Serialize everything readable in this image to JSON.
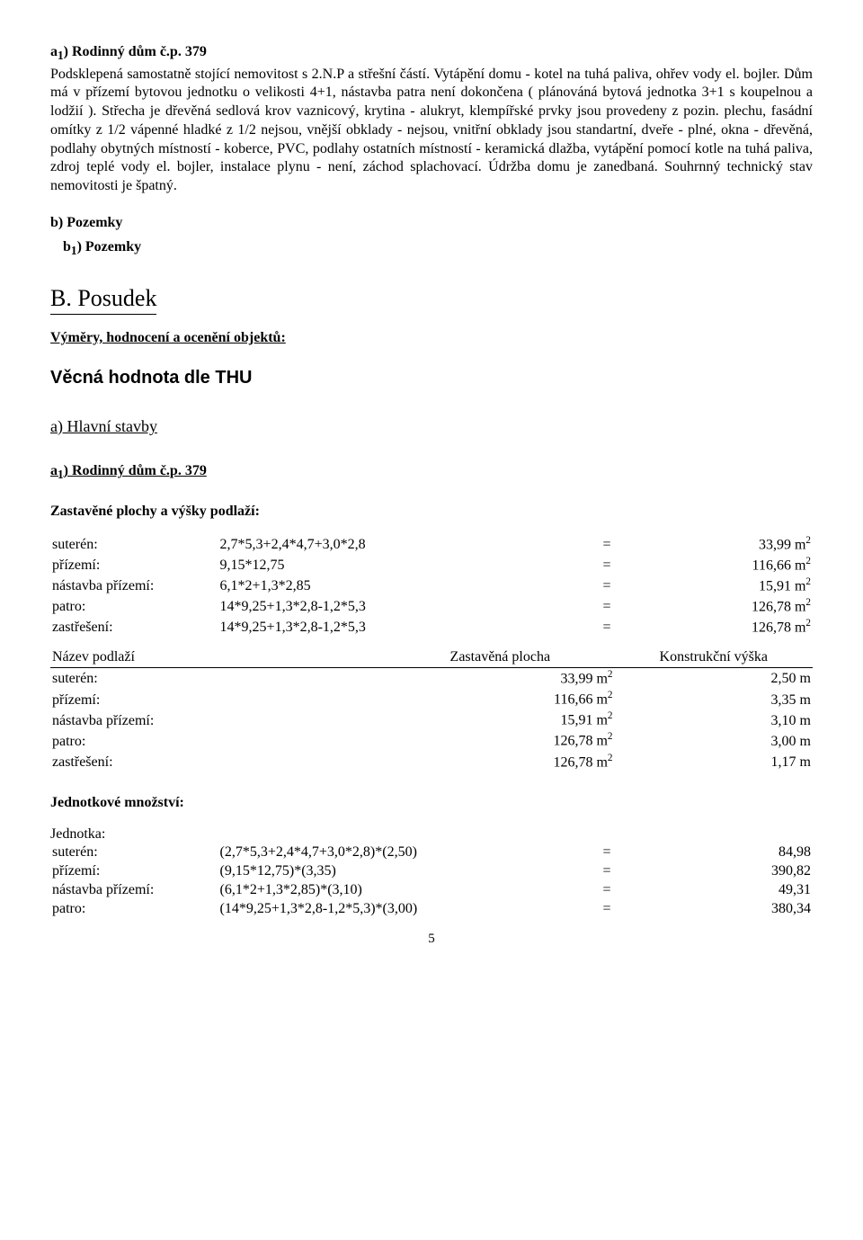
{
  "section_a1": {
    "heading": "a₁) Rodinný dům č.p. 379",
    "paragraph": "Podsklepená samostatně stojící nemovitost s 2.N.P a střešní částí.  Vytápění domu - kotel na tuhá paliva, ohřev vody el. bojler. Dům má v přízemí bytovou jednotku o velikosti 4+1, nástavba patra není dokončena ( plánováná bytová jednotka 3+1 s koupelnou a lodžií ). Střecha je dřevěná sedlová krov vaznicový, krytina - alukryt, klempířské prvky jsou provedeny z pozin. plechu, fasádní omítky z 1/2 vápenné hladké z 1/2 nejsou, vnější obklady - nejsou, vnitřní obklady jsou standartní, dveře - plné, okna - dřevěná, podlahy obytných místností - koberce, PVC, podlahy ostatních místností - keramická dlažba, vytápění pomocí kotle na tuhá paliva, zdroj teplé vody el. bojler, instalace plynu - není,  záchod splachovací. Údržba domu je zanedbaná. Souhrnný technický stav nemovitosti je špatný."
  },
  "section_b": {
    "heading": "b) Pozemky",
    "sub_heading": "b₁) Pozemky"
  },
  "posudek": "B. Posudek",
  "vymery": "Výměry, hodnocení a ocenění objektů:",
  "thu": "Věcná hodnota dle THU",
  "hlavni": "a) Hlavní stavby",
  "a1_2": "a₁) Rodinný dům č.p. 379",
  "zastavene_h": "Zastavěné plochy a výšky podlaží:",
  "calc_rows": [
    {
      "label": "suterén:",
      "expr": "2,7*5,3+2,4*4,7+3,0*2,8",
      "eq": "=",
      "val": "33,99 m²"
    },
    {
      "label": "přízemí:",
      "expr": "9,15*12,75",
      "eq": "=",
      "val": "116,66 m²"
    },
    {
      "label": "nástavba přízemí:",
      "expr": "6,1*2+1,3*2,85",
      "eq": "=",
      "val": "15,91 m²"
    },
    {
      "label": "patro:",
      "expr": "14*9,25+1,3*2,8-1,2*5,3",
      "eq": "=",
      "val": "126,78 m²"
    },
    {
      "label": "zastřešení:",
      "expr": "14*9,25+1,3*2,8-1,2*5,3",
      "eq": "=",
      "val": "126,78 m²"
    }
  ],
  "nazev_header": {
    "c1": "Název podlaží",
    "c2": "Zastavěná plocha",
    "c3": "Konstrukční výška"
  },
  "nazev_rows": [
    {
      "label": "suterén:",
      "area": "33,99 m²",
      "h": "2,50 m"
    },
    {
      "label": "přízemí:",
      "area": "116,66 m²",
      "h": "3,35 m"
    },
    {
      "label": "nástavba přízemí:",
      "area": "15,91 m²",
      "h": "3,10 m"
    },
    {
      "label": "patro:",
      "area": "126,78 m²",
      "h": "3,00 m"
    },
    {
      "label": "zastřešení:",
      "area": "126,78 m²",
      "h": "1,17 m"
    }
  ],
  "jedn_h": "Jednotkové množství:",
  "jednotka": "Jednotka:",
  "jedn_rows": [
    {
      "label": "suterén:",
      "expr": "(2,7*5,3+2,4*4,7+3,0*2,8)*(2,50)",
      "eq": "=",
      "val": "84,98"
    },
    {
      "label": "přízemí:",
      "expr": "(9,15*12,75)*(3,35)",
      "eq": "=",
      "val": "390,82"
    },
    {
      "label": "nástavba přízemí:",
      "expr": "(6,1*2+1,3*2,85)*(3,10)",
      "eq": "=",
      "val": "49,31"
    },
    {
      "label": "patro:",
      "expr": "(14*9,25+1,3*2,8-1,2*5,3)*(3,00)",
      "eq": "=",
      "val": "380,34"
    }
  ],
  "pagenum": "5"
}
